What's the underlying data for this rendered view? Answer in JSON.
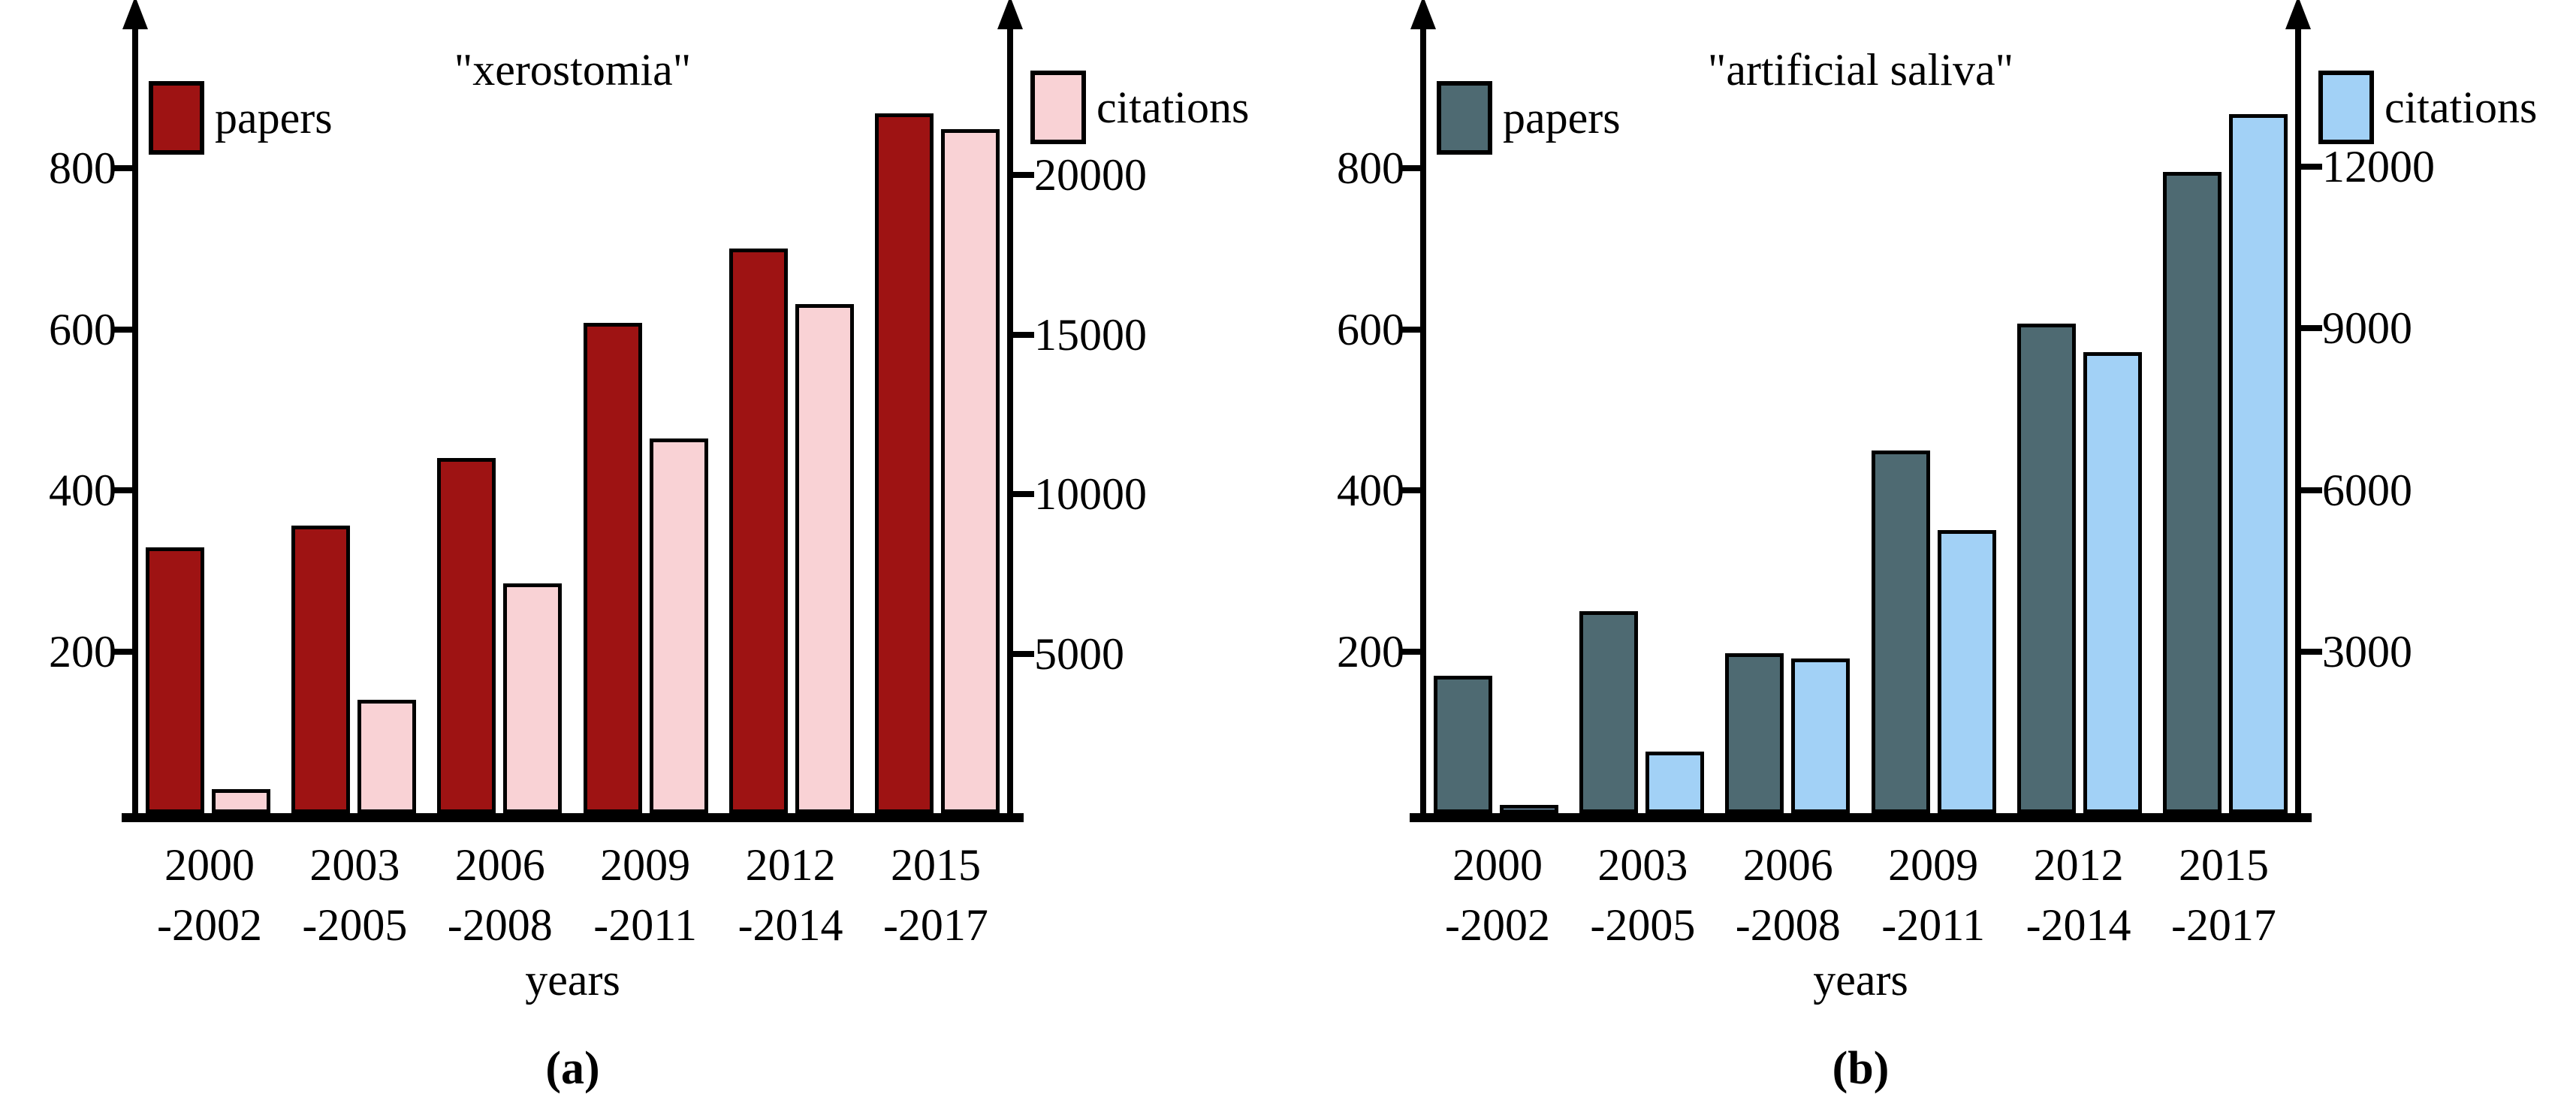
{
  "chart_data": [
    {
      "type": "bar",
      "panel_label": "(a)",
      "title": "\"xerostomia\"",
      "xlabel": "years",
      "grid": false,
      "categories": [
        {
          "line1": "2000",
          "line2": "-2002"
        },
        {
          "line1": "2003",
          "line2": "-2005"
        },
        {
          "line1": "2006",
          "line2": "-2008"
        },
        {
          "line1": "2009",
          "line2": "-2011"
        },
        {
          "line1": "2012",
          "line2": "-2014"
        },
        {
          "line1": "2015",
          "line2": "-2017"
        }
      ],
      "series": [
        {
          "name": "papers",
          "axis": "left",
          "color": "#9e1313",
          "values": [
            330,
            357,
            440,
            608,
            700,
            868
          ]
        },
        {
          "name": "citations",
          "axis": "right",
          "color": "#f9d2d5",
          "values": [
            750,
            3550,
            7200,
            11750,
            15950,
            21450
          ]
        }
      ],
      "left_axis": {
        "ticks": [
          200,
          400,
          600,
          800
        ],
        "range_max_hint": 985
      },
      "right_axis": {
        "ticks": [
          5000,
          10000,
          15000,
          20000
        ],
        "range_max_hint": 24900
      },
      "legend_position": "papers top-left, citations top-right"
    },
    {
      "type": "bar",
      "panel_label": "(b)",
      "title": "\"artificial saliva\"",
      "xlabel": "years",
      "grid": false,
      "categories": [
        {
          "line1": "2000",
          "line2": "-2002"
        },
        {
          "line1": "2003",
          "line2": "-2005"
        },
        {
          "line1": "2006",
          "line2": "-2008"
        },
        {
          "line1": "2009",
          "line2": "-2011"
        },
        {
          "line1": "2012",
          "line2": "-2014"
        },
        {
          "line1": "2015",
          "line2": "-2017"
        }
      ],
      "series": [
        {
          "name": "papers",
          "axis": "left",
          "color": "#4e6a72",
          "values": [
            170,
            250,
            198,
            450,
            607,
            795
          ]
        },
        {
          "name": "citations",
          "axis": "right",
          "color": "#a2d1f6",
          "values": [
            160,
            1150,
            2870,
            5250,
            8560,
            12980
          ]
        }
      ],
      "left_axis": {
        "ticks": [
          200,
          400,
          600,
          800
        ],
        "range_max_hint": 985
      },
      "right_axis": {
        "ticks": [
          3000,
          6000,
          9000,
          12000
        ],
        "range_max_hint": 14750
      },
      "legend_position": "papers top-left, citations top-right"
    }
  ]
}
